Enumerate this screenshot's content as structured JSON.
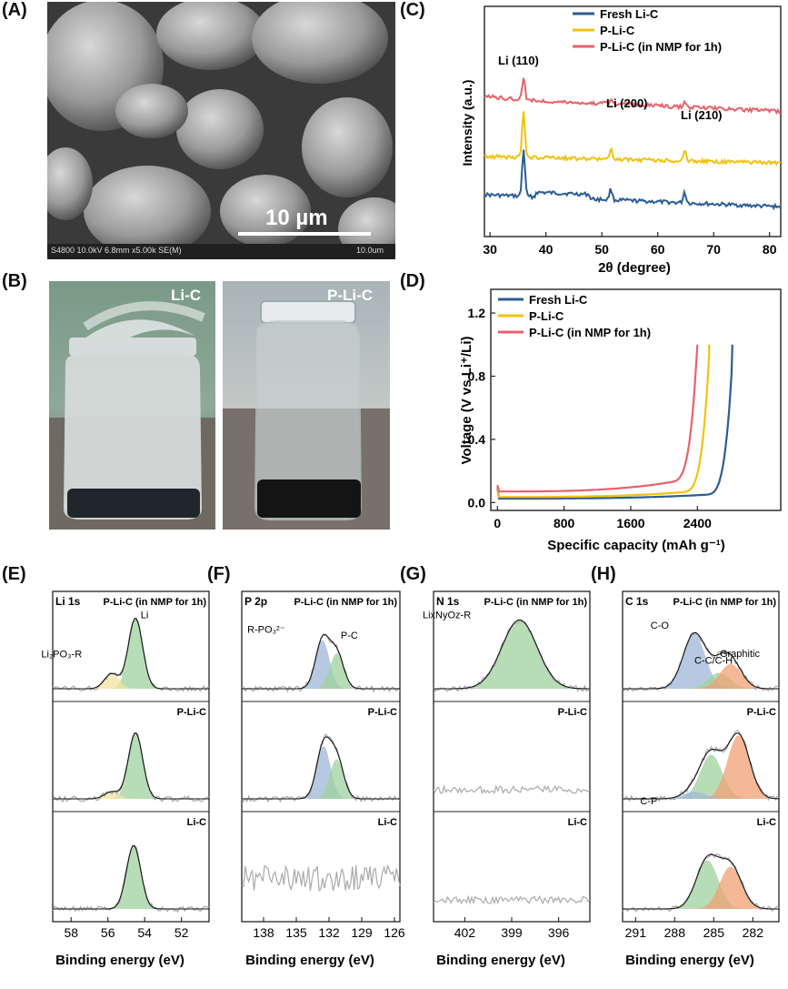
{
  "panel_labels": {
    "A": "(A)",
    "B": "(B)",
    "C": "(C)",
    "D": "(D)",
    "E": "(E)",
    "F": "(F)",
    "G": "(G)",
    "H": "(H)"
  },
  "sem": {
    "scale_text": "10 µm",
    "info_left": "S4800 10.0kV 6.8mm x5.00k SE(M)",
    "info_right": "10.0um"
  },
  "photos": {
    "left_label": "Li-C",
    "right_label": "P-Li-C"
  },
  "colors": {
    "fresh": "#2a5d96",
    "pli": "#f2c20c",
    "nmp": "#e8616a",
    "green": "#9fd19f",
    "blue": "#9fb7d8",
    "orange": "#f0a074",
    "yellow": "#f5e2a0"
  },
  "chart_data": [
    {
      "id": "C",
      "type": "line",
      "xlabel": "2θ (degree)",
      "ylabel": "Intensity (a.u.)",
      "xlim": [
        29,
        82
      ],
      "xticks": [
        30,
        40,
        50,
        60,
        70,
        80
      ],
      "series": [
        {
          "name": "Fresh Li-C",
          "color": "#2a5d96"
        },
        {
          "name": "P-Li-C",
          "color": "#f2c20c"
        },
        {
          "name": "P-Li-C (in NMP for 1h)",
          "color": "#e8616a"
        }
      ],
      "peaks": [
        {
          "label": "Li (110)",
          "x": 36.0
        },
        {
          "label": "Li (200)",
          "x": 51.6
        },
        {
          "label": "Li (210)",
          "x": 64.8
        }
      ]
    },
    {
      "id": "D",
      "type": "line",
      "xlabel": "Specific capacity (mAh g⁻¹)",
      "ylabel": "Voltage (V vs Li⁺/Li)",
      "xlim": [
        -80,
        3400
      ],
      "ylim": [
        -0.05,
        1.35
      ],
      "xticks": [
        0,
        800,
        1600,
        2400
      ],
      "yticks": [
        0.0,
        0.4,
        0.8,
        1.2
      ],
      "ytick_labels": [
        "0.0",
        "0.4",
        "0.8",
        "1.2"
      ],
      "series": [
        {
          "name": "Fresh Li-C",
          "color": "#2a5d96",
          "end_capacity": 2820
        },
        {
          "name": "P-Li-C",
          "color": "#f2c20c",
          "end_capacity": 2540
        },
        {
          "name": "P-Li-C (in NMP for 1h)",
          "color": "#e8616a",
          "end_capacity": 2400
        }
      ]
    },
    {
      "id": "E",
      "type": "area",
      "title": "Li 1s",
      "xlabel": "Binding energy (eV)",
      "xlim": [
        59,
        50.5
      ],
      "xticks": [
        58,
        56,
        54,
        52
      ],
      "rows": [
        {
          "label": "P-Li-C (in NMP for 1h)",
          "peaks": [
            {
              "center": 54.5,
              "color": "green",
              "label": "Li"
            },
            {
              "center": 55.8,
              "color": "yellow",
              "label": "Li₂PO₃-R"
            }
          ]
        },
        {
          "label": "P-Li-C",
          "peaks": [
            {
              "center": 54.5,
              "color": "green"
            },
            {
              "center": 55.8,
              "color": "yellow"
            }
          ]
        },
        {
          "label": "Li-C",
          "peaks": [
            {
              "center": 54.6,
              "color": "green"
            }
          ]
        }
      ]
    },
    {
      "id": "F",
      "type": "area",
      "title": "P 2p",
      "xlabel": "Binding energy (eV)",
      "xlim": [
        140,
        125.5
      ],
      "xticks": [
        138,
        135,
        132,
        129,
        126
      ],
      "rows": [
        {
          "label": "P-Li-C (in NMP for 1h)",
          "peaks": [
            {
              "center": 132.6,
              "color": "blue",
              "label": "R-PO₃²⁻"
            },
            {
              "center": 131.3,
              "color": "green",
              "label": "P-C"
            }
          ]
        },
        {
          "label": "P-Li-C",
          "peaks": [
            {
              "center": 132.5,
              "color": "blue"
            },
            {
              "center": 131.3,
              "color": "green"
            }
          ]
        },
        {
          "label": "Li-C",
          "peaks": []
        }
      ]
    },
    {
      "id": "G",
      "type": "area",
      "title": "N 1s",
      "xlabel": "Binding energy (eV)",
      "xlim": [
        404,
        394
      ],
      "xticks": [
        402,
        399,
        396
      ],
      "rows": [
        {
          "label": "P-Li-C (in NMP for 1h)",
          "peaks": [
            {
              "center": 398.5,
              "color": "green",
              "label": "LixNyOz-R"
            }
          ]
        },
        {
          "label": "P-Li-C",
          "peaks": []
        },
        {
          "label": "Li-C",
          "peaks": []
        }
      ]
    },
    {
      "id": "H",
      "type": "area",
      "title": "C 1s",
      "xlabel": "Binding energy (eV)",
      "xlim": [
        292,
        280
      ],
      "xticks": [
        291,
        288,
        285,
        282
      ],
      "rows": [
        {
          "label": "P-Li-C (in NMP for 1h)",
          "peaks": [
            {
              "center": 286.5,
              "color": "blue",
              "label": "C-O"
            },
            {
              "center": 284.6,
              "color": "green",
              "label": "C-C/C-H"
            },
            {
              "center": 283.7,
              "color": "orange",
              "label": "Graphitic"
            }
          ]
        },
        {
          "label": "P-Li-C",
          "peaks": [
            {
              "center": 285.2,
              "color": "green"
            },
            {
              "center": 283.1,
              "color": "orange"
            },
            {
              "center": 286.5,
              "color": "blue",
              "label": "C-P"
            }
          ]
        },
        {
          "label": "Li-C",
          "peaks": [
            {
              "center": 285.5,
              "color": "green"
            },
            {
              "center": 283.7,
              "color": "orange"
            }
          ]
        }
      ]
    }
  ]
}
